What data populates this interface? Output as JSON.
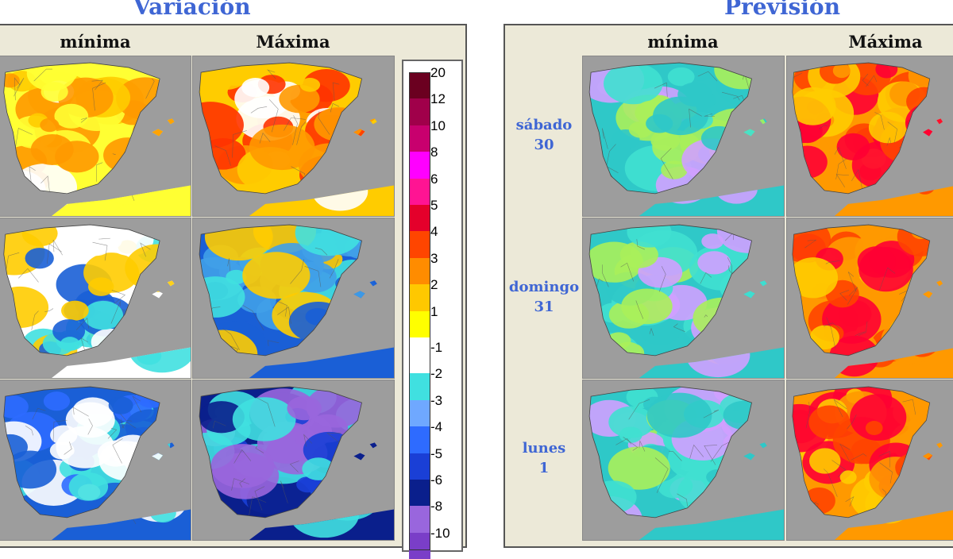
{
  "titles": {
    "left": "Variación",
    "right": "Previsión"
  },
  "left_panel": {
    "col_min": "mínima",
    "col_max": "Máxima"
  },
  "right_panel": {
    "col_min": "mínima",
    "col_max": "Máxima"
  },
  "days": [
    {
      "name": "sábado",
      "num": "30"
    },
    {
      "name": "domingo",
      "num": "31"
    },
    {
      "name": "lunes",
      "num": "1"
    }
  ],
  "legend": {
    "labels": [
      "20",
      "12",
      "10",
      "8",
      "6",
      "5",
      "4",
      "3",
      "2",
      "1",
      "-1",
      "-2",
      "-3",
      "-4",
      "-5",
      "-6",
      "-8",
      "-10"
    ],
    "colors": [
      "#6b0020",
      "#a0004a",
      "#c8006e",
      "#ff00ff",
      "#ff1493",
      "#e4002b",
      "#ff4500",
      "#ff8c00",
      "#ffc800",
      "#ffff00",
      "#ffffff",
      "#40e0e0",
      "#6fa8ff",
      "#2e6bff",
      "#1a3fd6",
      "#0a1f8c",
      "#9966dd",
      "#7a3ec8"
    ]
  },
  "map_palettes": {
    "var_min": [
      "#ffff33",
      "#ffcc00",
      "#ff9900",
      "#ffffff"
    ],
    "var_max": [
      "#ffcc00",
      "#ff9900",
      "#ff3300",
      "#ffffff"
    ],
    "var_min_2": [
      "#ffffff",
      "#40e0e0",
      "#1a5fd6",
      "#ffcc00"
    ],
    "var_max_2": [
      "#1a5fd6",
      "#40a0e8",
      "#40e0e0",
      "#ffcc00"
    ],
    "var_min_3": [
      "#1a5fd6",
      "#2e6bff",
      "#40e0e0",
      "#ffffff"
    ],
    "var_max_3": [
      "#0a1f8c",
      "#1a3fd6",
      "#9966dd",
      "#40e0e0"
    ],
    "fc_min": [
      "#2fc8c8",
      "#40e0d0",
      "#aaf05a",
      "#d0a0ff"
    ],
    "fc_max": [
      "#ff9900",
      "#ff4400",
      "#ffcc00",
      "#ff0033"
    ]
  }
}
